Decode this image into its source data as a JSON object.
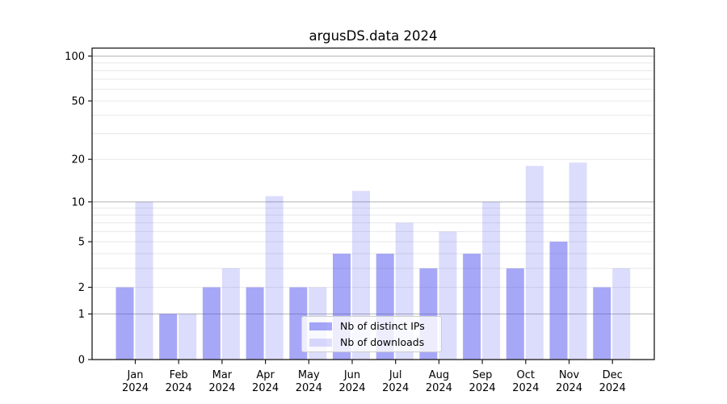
{
  "chart_data": {
    "type": "bar",
    "title": "argusDS.data 2024",
    "categories": [
      "Jan",
      "Feb",
      "Mar",
      "Apr",
      "May",
      "Jun",
      "Jul",
      "Aug",
      "Sep",
      "Oct",
      "Nov",
      "Dec"
    ],
    "year_label": "2024",
    "series": [
      {
        "name": "Nb of distinct IPs",
        "color": "rgba(68,68,238,0.47)",
        "values": [
          2,
          1,
          2,
          2,
          2,
          4,
          4,
          3,
          4,
          3,
          5,
          2
        ]
      },
      {
        "name": "Nb of downloads",
        "color": "rgba(68,68,238,0.19)",
        "values": [
          10,
          1,
          3,
          11,
          2,
          12,
          7,
          6,
          10,
          18,
          19,
          3
        ]
      }
    ],
    "y_axis": {
      "scale": "log1p",
      "ticks": [
        0,
        1,
        2,
        5,
        10,
        20,
        50,
        100
      ],
      "major_gridlines": [
        1,
        10,
        100
      ],
      "minor_gridlines": [
        2,
        3,
        4,
        5,
        6,
        7,
        8,
        9,
        20,
        30,
        40,
        50,
        60,
        70,
        80,
        90
      ],
      "ylim": [
        0,
        113
      ]
    },
    "legend_position": "lower center",
    "grid": true
  },
  "colors": {
    "major_grid": "#b2b2b2",
    "minor_grid": "#e8e8e8",
    "axis": "#1a1a1a",
    "text": "#000000"
  }
}
